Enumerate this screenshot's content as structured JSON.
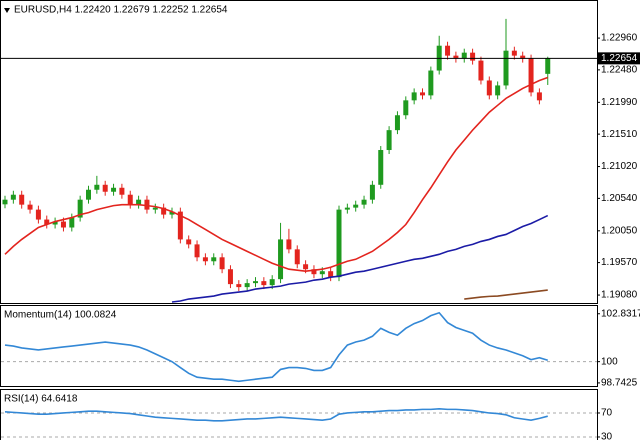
{
  "chart_data": [
    {
      "type": "candlestick",
      "title": "EURUSD,H4  1.22420 1.22679 1.22252 1.22654",
      "up_color": "#1f9a1f",
      "down_color": "#e3241e",
      "open": [
        1.2045,
        1.2052,
        1.20595,
        1.20445,
        1.2037,
        1.2022,
        1.20145,
        1.2019,
        1.201,
        1.2025,
        1.2052,
        1.2067,
        1.20745,
        1.2064,
        1.207,
        1.20595,
        1.20445,
        1.2052,
        1.2037,
        1.204,
        1.20295,
        1.2034,
        1.1992,
        1.19845,
        1.1965,
        1.1959,
        1.1965,
        1.1947,
        1.19245,
        1.192,
        1.1926,
        1.1929,
        1.1923,
        1.1932,
        1.1992,
        1.1977,
        1.19545,
        1.1947,
        1.19395,
        1.1944,
        1.1935,
        1.2037,
        1.204,
        1.20445,
        1.2052,
        1.20745,
        1.2127,
        1.2157,
        1.21795,
        1.2202,
        1.2214,
        1.22095,
        1.2247,
        1.22845,
        1.22695,
        1.2265,
        1.2274,
        1.2262,
        1.2232,
        1.22095,
        1.22245,
        1.2277,
        1.22695,
        1.2265,
        1.2214,
        1.2242
      ],
      "high": [
        1.2058,
        1.20655,
        1.20655,
        1.20505,
        1.2043,
        1.2028,
        1.2025,
        1.2025,
        1.2031,
        1.2058,
        1.2073,
        1.2088,
        1.20805,
        1.2076,
        1.2076,
        1.20655,
        1.2058,
        1.2058,
        1.2046,
        1.2046,
        1.204,
        1.204,
        1.1998,
        1.19905,
        1.1971,
        1.1971,
        1.1971,
        1.1953,
        1.19305,
        1.1932,
        1.1935,
        1.1935,
        1.1938,
        1.2017,
        1.2008,
        1.1983,
        1.19605,
        1.1953,
        1.195,
        1.195,
        1.2043,
        1.2046,
        1.20505,
        1.2058,
        1.20805,
        1.2133,
        1.2163,
        1.21855,
        1.2208,
        1.222,
        1.222,
        1.2253,
        1.22995,
        1.22905,
        1.22755,
        1.228,
        1.228,
        1.2268,
        1.2238,
        1.22305,
        1.2325,
        1.2283,
        1.22755,
        1.2271,
        1.222,
        1.22679
      ],
      "low": [
        1.2039,
        1.2046,
        1.20385,
        1.2031,
        1.2016,
        1.20085,
        1.20085,
        1.2004,
        1.2004,
        1.2019,
        1.2046,
        1.2061,
        1.2058,
        1.2058,
        1.20535,
        1.20385,
        1.20385,
        1.2031,
        1.2031,
        1.20235,
        1.20235,
        1.1986,
        1.19785,
        1.1959,
        1.1953,
        1.1953,
        1.1941,
        1.19185,
        1.1914,
        1.1914,
        1.192,
        1.1917,
        1.1917,
        1.1926,
        1.1971,
        1.19485,
        1.1941,
        1.19335,
        1.19335,
        1.1929,
        1.1929,
        1.2031,
        1.2034,
        1.20385,
        1.2046,
        1.20685,
        1.2121,
        1.2151,
        1.21735,
        1.2196,
        1.22035,
        1.22035,
        1.2241,
        1.22635,
        1.2259,
        1.2259,
        1.2256,
        1.2226,
        1.22035,
        1.22035,
        1.22185,
        1.22635,
        1.2259,
        1.2208,
        1.2196,
        1.22252
      ],
      "close": [
        1.2052,
        1.20595,
        1.20445,
        1.2037,
        1.2022,
        1.20145,
        1.2019,
        1.201,
        1.2025,
        1.2052,
        1.2067,
        1.20745,
        1.2064,
        1.207,
        1.20595,
        1.20445,
        1.2052,
        1.2037,
        1.204,
        1.20295,
        1.2034,
        1.1992,
        1.19845,
        1.1965,
        1.1959,
        1.1965,
        1.1947,
        1.19245,
        1.192,
        1.1926,
        1.1929,
        1.1923,
        1.1932,
        1.1992,
        1.1977,
        1.19545,
        1.1947,
        1.19395,
        1.1944,
        1.1935,
        1.2037,
        1.204,
        1.20445,
        1.2052,
        1.20745,
        1.2127,
        1.2157,
        1.21795,
        1.2202,
        1.2214,
        1.22095,
        1.2247,
        1.22845,
        1.22695,
        1.2265,
        1.2274,
        1.2262,
        1.2232,
        1.22095,
        1.22245,
        1.2277,
        1.22695,
        1.2265,
        1.2214,
        1.2202,
        1.22654
      ],
      "overlays": [
        {
          "color": "#e3241e",
          "values": [
            1.19695,
            1.19815,
            1.1992,
            1.2001,
            1.201,
            1.20145,
            1.2019,
            1.2022,
            1.2025,
            1.20295,
            1.20325,
            1.2037,
            1.204,
            1.2043,
            1.20445,
            1.20445,
            1.20445,
            1.2043,
            1.20415,
            1.20385,
            1.2034,
            1.2028,
            1.2022,
            1.20145,
            1.2007,
            1.19995,
            1.1992,
            1.1986,
            1.198,
            1.1974,
            1.1968,
            1.1962,
            1.1956,
            1.19515,
            1.1947,
            1.19455,
            1.1944,
            1.19455,
            1.1947,
            1.195,
            1.19545,
            1.1959,
            1.1962,
            1.1968,
            1.1974,
            1.1983,
            1.1992,
            1.20025,
            1.20145,
            1.20325,
            1.2052,
            1.207,
            1.20895,
            1.2109,
            1.2127,
            1.2142,
            1.2157,
            1.21705,
            1.2184,
            1.21945,
            1.2205,
            1.22125,
            1.222,
            1.2226,
            1.2232,
            1.22365
          ]
        },
        {
          "color": "#1b1ba6",
          "values": [
            null,
            null,
            null,
            null,
            null,
            null,
            null,
            null,
            null,
            null,
            null,
            null,
            null,
            null,
            null,
            null,
            null,
            null,
            null,
            null,
            1.18975,
            1.1899,
            1.1902,
            1.19035,
            1.1905,
            1.19065,
            1.19095,
            1.1911,
            1.19125,
            1.1914,
            1.1917,
            1.19185,
            1.192,
            1.19215,
            1.19245,
            1.1926,
            1.19275,
            1.19305,
            1.1932,
            1.1935,
            1.19365,
            1.19395,
            1.19425,
            1.1944,
            1.1947,
            1.195,
            1.1953,
            1.1956,
            1.1959,
            1.1962,
            1.19635,
            1.19665,
            1.19695,
            1.1974,
            1.1977,
            1.19815,
            1.19845,
            1.1989,
            1.1992,
            1.19965,
            1.19995,
            1.20055,
            1.20115,
            1.2016,
            1.2022,
            1.2028
          ]
        },
        {
          "color": "#8b4a22",
          "values": [
            null,
            null,
            null,
            null,
            null,
            null,
            null,
            null,
            null,
            null,
            null,
            null,
            null,
            null,
            null,
            null,
            null,
            null,
            null,
            null,
            null,
            null,
            null,
            null,
            null,
            null,
            null,
            null,
            null,
            null,
            null,
            null,
            null,
            null,
            null,
            null,
            null,
            null,
            null,
            null,
            null,
            null,
            null,
            null,
            null,
            null,
            null,
            null,
            null,
            null,
            null,
            null,
            null,
            null,
            null,
            1.1902,
            1.19035,
            1.1905,
            1.1906,
            1.19065,
            1.1908,
            1.19095,
            1.1911,
            1.19125,
            1.1914,
            1.19155
          ]
        }
      ],
      "current_price": 1.22654,
      "ylim": [
        1.1896,
        1.2352
      ],
      "yticks": [
        {
          "value": 1.2296,
          "label": "1.22960"
        },
        {
          "value": 1.2248,
          "label": "1.22480"
        },
        {
          "value": 1.2199,
          "label": "1.21990"
        },
        {
          "value": 1.2151,
          "label": "1.21510"
        },
        {
          "value": 1.2102,
          "label": "1.21020"
        },
        {
          "value": 1.2054,
          "label": "1.20540"
        },
        {
          "value": 1.2005,
          "label": "1.20050"
        },
        {
          "value": 1.1957,
          "label": "1.19570"
        },
        {
          "value": 1.1908,
          "label": "1.19080"
        }
      ]
    },
    {
      "type": "line",
      "title": "Momentum(14) 100.0824",
      "color": "#3388d6",
      "values": [
        100.98,
        100.92,
        100.81,
        100.75,
        100.69,
        100.75,
        100.81,
        100.87,
        100.92,
        100.98,
        101.04,
        101.1,
        101.16,
        101.1,
        101.04,
        100.98,
        100.87,
        100.69,
        100.46,
        100.23,
        100.0,
        99.65,
        99.31,
        99.08,
        99.02,
        98.96,
        98.96,
        98.9,
        98.84,
        98.9,
        98.96,
        99.02,
        99.08,
        99.54,
        99.65,
        99.65,
        99.6,
        99.48,
        99.48,
        99.65,
        100.4,
        100.98,
        101.16,
        101.27,
        101.5,
        101.97,
        101.73,
        101.56,
        101.97,
        102.25,
        102.43,
        102.72,
        102.89,
        102.31,
        102.02,
        101.85,
        101.68,
        101.27,
        100.98,
        100.81,
        100.69,
        100.52,
        100.35,
        100.12,
        100.23,
        100.08
      ],
      "levels": [
        100
      ],
      "ylim": [
        98.56,
        103.29
      ],
      "yticks": [
        102.8317,
        100,
        98.7425
      ]
    },
    {
      "type": "line",
      "title": "RSI(14) 64.6418",
      "color": "#3388d6",
      "values": [
        72,
        71,
        70,
        69,
        68,
        68,
        69,
        70,
        71,
        72,
        73,
        73,
        72,
        71,
        70,
        69,
        67,
        65,
        63,
        62,
        61,
        60,
        59,
        58,
        58,
        57,
        57,
        58,
        59,
        60,
        60,
        61,
        62,
        63,
        62,
        61,
        60,
        59,
        58,
        60,
        68,
        70,
        71,
        72,
        72,
        73,
        74,
        74,
        75,
        75,
        76,
        76,
        77,
        76,
        76,
        75,
        74,
        72,
        70,
        69,
        67,
        62,
        60,
        58,
        61,
        64.64
      ],
      "levels": [
        70,
        30
      ],
      "ylim": [
        23.3,
        108.3
      ],
      "yticks": [
        70,
        30
      ]
    }
  ]
}
